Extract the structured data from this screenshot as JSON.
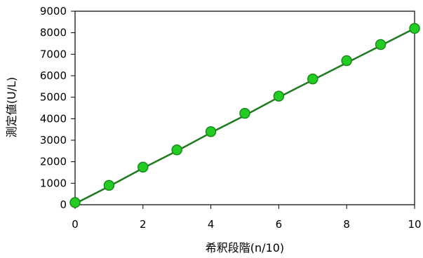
{
  "chart_data": {
    "type": "scatter",
    "title": "",
    "xlabel": "希釈段階(n/10)",
    "ylabel": "測定値(U/L)",
    "xlim": [
      0,
      10
    ],
    "ylim": [
      0,
      9000
    ],
    "xticks": [
      0,
      2,
      4,
      6,
      8,
      10
    ],
    "yticks": [
      0,
      1000,
      2000,
      3000,
      4000,
      5000,
      6000,
      7000,
      8000,
      9000
    ],
    "grid": false,
    "legend": "none",
    "series": [
      {
        "x": [
          0,
          1,
          2,
          3,
          4,
          5,
          6,
          7,
          8,
          9,
          10
        ],
        "values": [
          100,
          900,
          1750,
          2550,
          3400,
          4250,
          5050,
          5850,
          6700,
          7450,
          8200
        ],
        "marker_color": "#22cc22",
        "marker_edge_color": "#1a8a1a"
      }
    ],
    "fit_line": {
      "x": [
        0,
        1,
        2,
        3,
        4,
        5,
        6,
        7,
        8,
        9,
        10
      ],
      "values": [
        50,
        850,
        1700,
        2500,
        3350,
        4150,
        5000,
        5800,
        6600,
        7400,
        8200
      ],
      "color": "#1e7a1e"
    }
  }
}
